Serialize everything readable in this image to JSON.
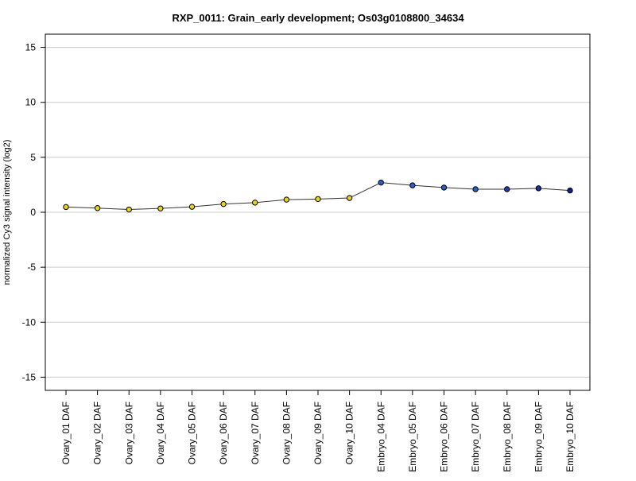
{
  "chart_data": {
    "type": "line",
    "title": "RXP_0011: Grain_early development; Os03g0108800_34634",
    "ylabel": "normalized Cy3 signal intensity (log2)",
    "xlabel": "",
    "ylim": [
      -16.2,
      16.2
    ],
    "yticks": [
      -15,
      -10,
      -5,
      0,
      5,
      10,
      15
    ],
    "grid": true,
    "categories": [
      "Ovary_01 DAF",
      "Ovary_02 DAF",
      "Ovary_03 DAF",
      "Ovary_04 DAF",
      "Ovary_05 DAF",
      "Ovary_06 DAF",
      "Ovary_07 DAF",
      "Ovary_08 DAF",
      "Ovary_09 DAF",
      "Ovary_10 DAF",
      "Embryo_04 DAF",
      "Embryo_05 DAF",
      "Embryo_06 DAF",
      "Embryo_07 DAF",
      "Embryo_08 DAF",
      "Embryo_09 DAF",
      "Embryo_10 DAF"
    ],
    "values": [
      0.48,
      0.38,
      0.25,
      0.35,
      0.5,
      0.75,
      0.88,
      1.15,
      1.2,
      1.3,
      2.7,
      2.45,
      2.25,
      2.1,
      2.1,
      2.18,
      1.98
    ],
    "point_colors": [
      "#e8d21a",
      "#e8d21a",
      "#e8d21a",
      "#e8d21a",
      "#e8d21a",
      "#e8d21a",
      "#e8d21a",
      "#e8d21a",
      "#e8d21a",
      "#e8d21a",
      "#2a5fc7",
      "#2a5fc7",
      "#2a5fc7",
      "#2a5fc7",
      "#1f3fb0",
      "#1a2fa0",
      "#101e90"
    ]
  }
}
